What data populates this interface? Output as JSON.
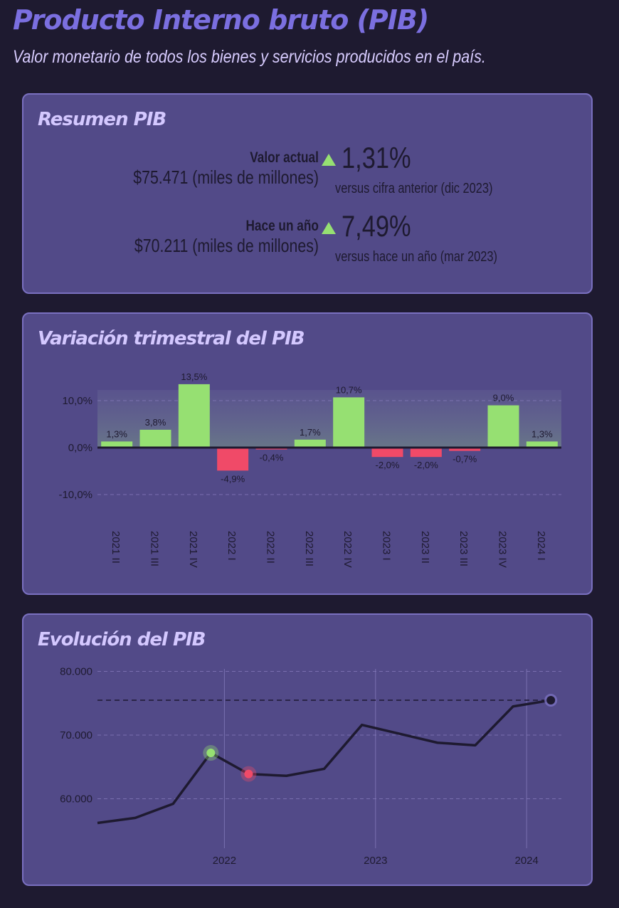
{
  "header": {
    "title": "Producto Interno bruto (PIB)",
    "subtitle": "Valor monetario de todos los bienes y servicios producidos en el país."
  },
  "summary": {
    "title": "Resumen PIB",
    "rows": [
      {
        "label": "Valor actual",
        "value": "$75.471 (miles de millones)",
        "change": "1,31%",
        "direction": "up",
        "comparison": "versus cifra anterior (dic 2023)"
      },
      {
        "label": "Hace un año",
        "value": "$70.211 (miles de millones)",
        "change": "7,49%",
        "direction": "up",
        "comparison": "versus hace un año (mar 2023)"
      }
    ]
  },
  "colors": {
    "background": "#1e1a30",
    "card": "#524a88",
    "positive": "#96e072",
    "negative": "#f04a68",
    "line": "#1e1a30",
    "heading": "#7b6fe0"
  },
  "chart_data": [
    {
      "type": "bar",
      "title": "Variación trimestral del PIB",
      "categories": [
        "2021 II",
        "2021 III",
        "2021 IV",
        "2022 I",
        "2022 II",
        "2022 III",
        "2022 IV",
        "2023 I",
        "2023 II",
        "2023 III",
        "2023 IV",
        "2024 I"
      ],
      "values": [
        1.3,
        3.8,
        13.5,
        -4.9,
        -0.4,
        1.7,
        10.7,
        -2.0,
        -2.0,
        -0.7,
        9.0,
        1.3
      ],
      "data_labels": [
        "1,3%",
        "3,8%",
        "13,5%",
        "-4,9%",
        "-0,4%",
        "1,7%",
        "10,7%",
        "-2,0%",
        "-2,0%",
        "-0,7%",
        "9,0%",
        "1,3%"
      ],
      "yticks": [
        {
          "value": 10,
          "label": "10,0%"
        },
        {
          "value": 0,
          "label": "0,0%"
        },
        {
          "value": -10,
          "label": "-10,0%"
        }
      ],
      "ylim": [
        -10,
        13.5
      ],
      "grid": true
    },
    {
      "type": "line",
      "title": "Evolución del PIB",
      "x": [
        "2021 I",
        "2021 II",
        "2021 III",
        "2021 IV",
        "2022 I",
        "2022 II",
        "2022 III",
        "2022 IV",
        "2023 I",
        "2023 II",
        "2023 III",
        "2023 IV",
        "2024 I"
      ],
      "values": [
        56200,
        57000,
        59200,
        67200,
        63900,
        63600,
        64700,
        71600,
        70200,
        68800,
        68400,
        74500,
        75471
      ],
      "highlights": [
        {
          "x": "2021 IV",
          "kind": "max-before-drop",
          "color": "#96e072"
        },
        {
          "x": "2022 I",
          "kind": "drop",
          "color": "#f04a68"
        },
        {
          "x": "2024 I",
          "kind": "latest",
          "color": "#1e1a30"
        }
      ],
      "reference_line": 75471,
      "yticks": [
        {
          "value": 80000,
          "label": "80.000"
        },
        {
          "value": 70000,
          "label": "70.000"
        },
        {
          "value": 60000,
          "label": "60.000"
        }
      ],
      "xticks": [
        {
          "position": "2022 I",
          "label": "2022"
        },
        {
          "position": "2023 I",
          "label": "2023"
        },
        {
          "position": "2024 I",
          "label": "2024"
        }
      ],
      "grid": true
    }
  ]
}
